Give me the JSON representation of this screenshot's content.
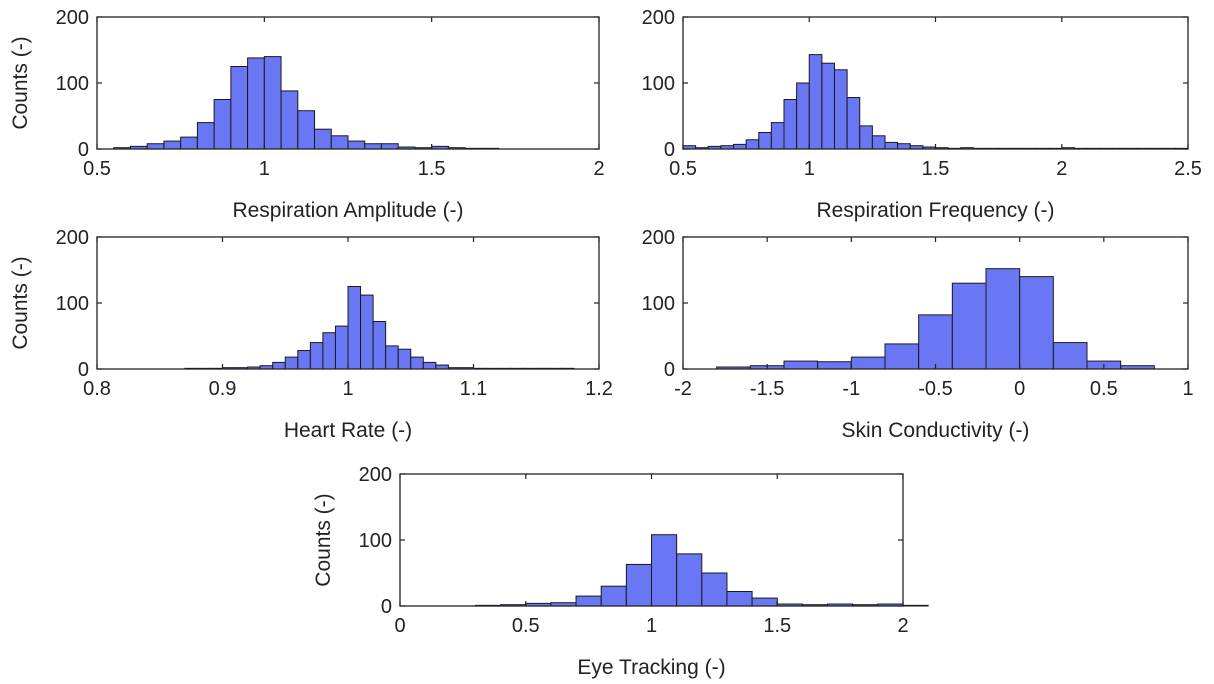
{
  "chart_data": [
    {
      "type": "bar",
      "title": "",
      "xlabel": "Respiration Amplitude (-)",
      "ylabel": "Counts (-)",
      "xlim": [
        0.5,
        2
      ],
      "ylim": [
        0,
        200
      ],
      "xticks": [
        "0.5",
        "1",
        "1.5",
        "2"
      ],
      "xtick_values": [
        0.5,
        1,
        1.5,
        2
      ],
      "yticks": [
        "0",
        "100",
        "200"
      ],
      "ytick_values": [
        0,
        100,
        200
      ],
      "bin_start": 0.55,
      "bin_width": 0.05,
      "values": [
        2,
        4,
        8,
        12,
        18,
        40,
        75,
        125,
        138,
        140,
        88,
        58,
        30,
        20,
        12,
        8,
        8,
        3,
        2,
        4,
        2,
        1,
        1,
        0,
        0,
        0,
        0
      ]
    },
    {
      "type": "bar",
      "title": "",
      "xlabel": "Respiration Frequency (-)",
      "ylabel": "",
      "xlim": [
        0.5,
        2.5
      ],
      "ylim": [
        0,
        200
      ],
      "xticks": [
        "0.5",
        "1",
        "1.5",
        "2",
        "2.5"
      ],
      "xtick_values": [
        0.5,
        1,
        1.5,
        2,
        2.5
      ],
      "yticks": [
        "0",
        "100",
        "200"
      ],
      "ytick_values": [
        0,
        100,
        200
      ],
      "bin_start": 0.5,
      "bin_width": 0.05,
      "values": [
        5,
        2,
        4,
        5,
        7,
        14,
        25,
        40,
        75,
        100,
        143,
        130,
        120,
        78,
        35,
        20,
        10,
        8,
        5,
        3,
        2,
        1,
        2,
        1,
        1,
        1,
        1,
        1,
        1,
        1,
        2,
        1,
        1,
        1,
        1,
        1,
        1,
        1,
        1,
        1
      ]
    },
    {
      "type": "bar",
      "title": "",
      "xlabel": "Heart Rate (-)",
      "ylabel": "Counts (-)",
      "xlim": [
        0.8,
        1.2
      ],
      "ylim": [
        0,
        200
      ],
      "xticks": [
        "0.8",
        "0.9",
        "1",
        "1.1",
        "1.2"
      ],
      "xtick_values": [
        0.8,
        0.9,
        1,
        1.1,
        1.2
      ],
      "yticks": [
        "0",
        "100",
        "200"
      ],
      "ytick_values": [
        0,
        100,
        200
      ],
      "bin_start": 0.87,
      "bin_width": 0.01,
      "values": [
        1,
        1,
        1,
        2,
        2,
        3,
        5,
        10,
        18,
        28,
        40,
        55,
        65,
        125,
        112,
        72,
        35,
        30,
        18,
        10,
        6,
        2,
        2,
        1,
        1,
        1,
        1,
        1,
        1,
        1,
        1
      ]
    },
    {
      "type": "bar",
      "title": "",
      "xlabel": "Skin Conductivity (-)",
      "ylabel": "",
      "xlim": [
        -2,
        1
      ],
      "ylim": [
        0,
        200
      ],
      "xticks": [
        "-2",
        "-1.5",
        "-1",
        "-0.5",
        "0",
        "0.5",
        "1"
      ],
      "xtick_values": [
        -2,
        -1.5,
        -1,
        -0.5,
        0,
        0.5,
        1
      ],
      "yticks": [
        "0",
        "100",
        "200"
      ],
      "ytick_values": [
        0,
        100,
        200
      ],
      "bin_start": -1.8,
      "bin_width": 0.2,
      "values": [
        3,
        5,
        12,
        11,
        18,
        38,
        82,
        130,
        152,
        140,
        40,
        12,
        5
      ]
    },
    {
      "type": "bar",
      "title": "",
      "xlabel": "Eye Tracking (-)",
      "ylabel": "Counts (-)",
      "xlim": [
        0,
        2
      ],
      "ylim": [
        0,
        200
      ],
      "xticks": [
        "0",
        "0.5",
        "1",
        "1.5",
        "2"
      ],
      "xtick_values": [
        0,
        0.5,
        1,
        1.5,
        2
      ],
      "yticks": [
        "0",
        "100",
        "200"
      ],
      "ytick_values": [
        0,
        100,
        200
      ],
      "bin_start": 0.3,
      "bin_width": 0.1,
      "values": [
        1,
        2,
        4,
        5,
        15,
        30,
        63,
        108,
        79,
        50,
        22,
        12,
        3,
        2,
        3,
        2,
        3,
        1
      ]
    }
  ]
}
